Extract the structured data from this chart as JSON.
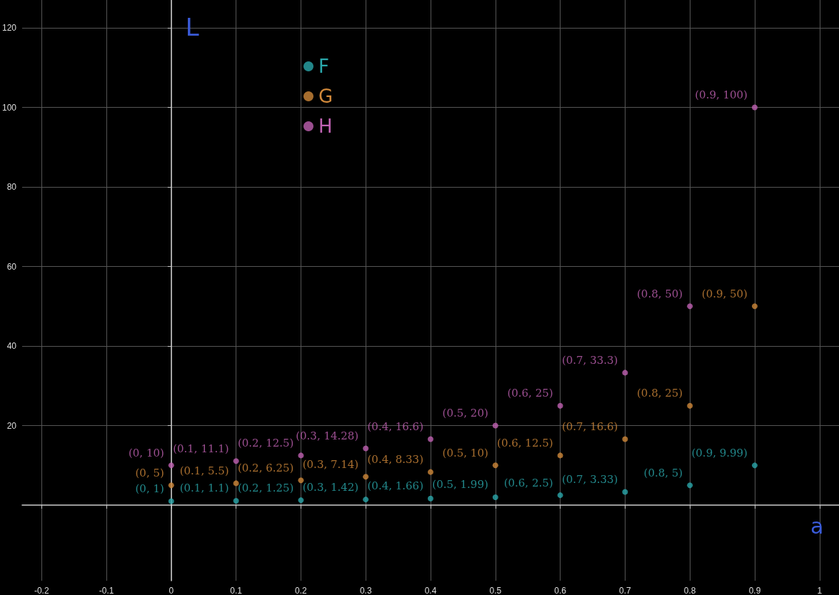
{
  "chart_data": {
    "type": "scatter",
    "xlabel": "a",
    "ylabel": "L",
    "x": [
      0,
      0.1,
      0.2,
      0.3,
      0.4,
      0.5,
      0.6,
      0.7,
      0.8,
      0.9
    ],
    "series": [
      {
        "name": "F",
        "color": "#2aa8ab",
        "values": [
          1,
          1.1,
          1.25,
          1.42,
          1.66,
          1.99,
          2.5,
          3.33,
          5,
          9.99
        ],
        "value_labels": [
          "(0, 1)",
          "(0.1, 1.1)",
          "(0.2, 1.25)",
          "(0.3, 1.42)",
          "(0.4, 1.66)",
          "(0.5, 1.99)",
          "(0.6, 2.5)",
          "(0.7, 3.33)",
          "(0.8, 5)",
          "(0.9, 9.99)"
        ]
      },
      {
        "name": "G",
        "color": "#d0883a",
        "values": [
          5,
          5.5,
          6.25,
          7.14,
          8.33,
          10,
          12.5,
          16.6,
          25,
          50
        ],
        "value_labels": [
          "(0, 5)",
          "(0.1, 5.5)",
          "(0.2, 6.25)",
          "(0.3, 7.14)",
          "(0.4, 8.33)",
          "(0.5, 10)",
          "(0.6, 12.5)",
          "(0.7, 16.6)",
          "(0.8, 25)",
          "(0.9, 50)"
        ]
      },
      {
        "name": "H",
        "color": "#c062b3",
        "values": [
          10,
          11.1,
          12.5,
          14.28,
          16.6,
          20,
          25,
          33.3,
          50,
          100
        ],
        "value_labels": [
          "(0, 10)",
          "(0.1, 11.1)",
          "(0.2, 12.5)",
          "(0.3, 14.28)",
          "(0.4, 16.6)",
          "(0.5, 20)",
          "(0.6, 25)",
          "(0.7, 33.3)",
          "(0.8, 50)",
          "(0.9, 100)"
        ]
      }
    ],
    "xlim": [
      -0.23,
      1.03
    ],
    "xticks": [
      -0.2,
      -0.1,
      0,
      0.1,
      0.2,
      0.3,
      0.4,
      0.5,
      0.6,
      0.7,
      0.8,
      0.9,
      1
    ],
    "ylim": [
      -19,
      127
    ],
    "yticks": [
      20,
      40,
      60,
      80,
      100,
      120
    ],
    "grid": true,
    "legend": "top left",
    "marker": "circle"
  }
}
